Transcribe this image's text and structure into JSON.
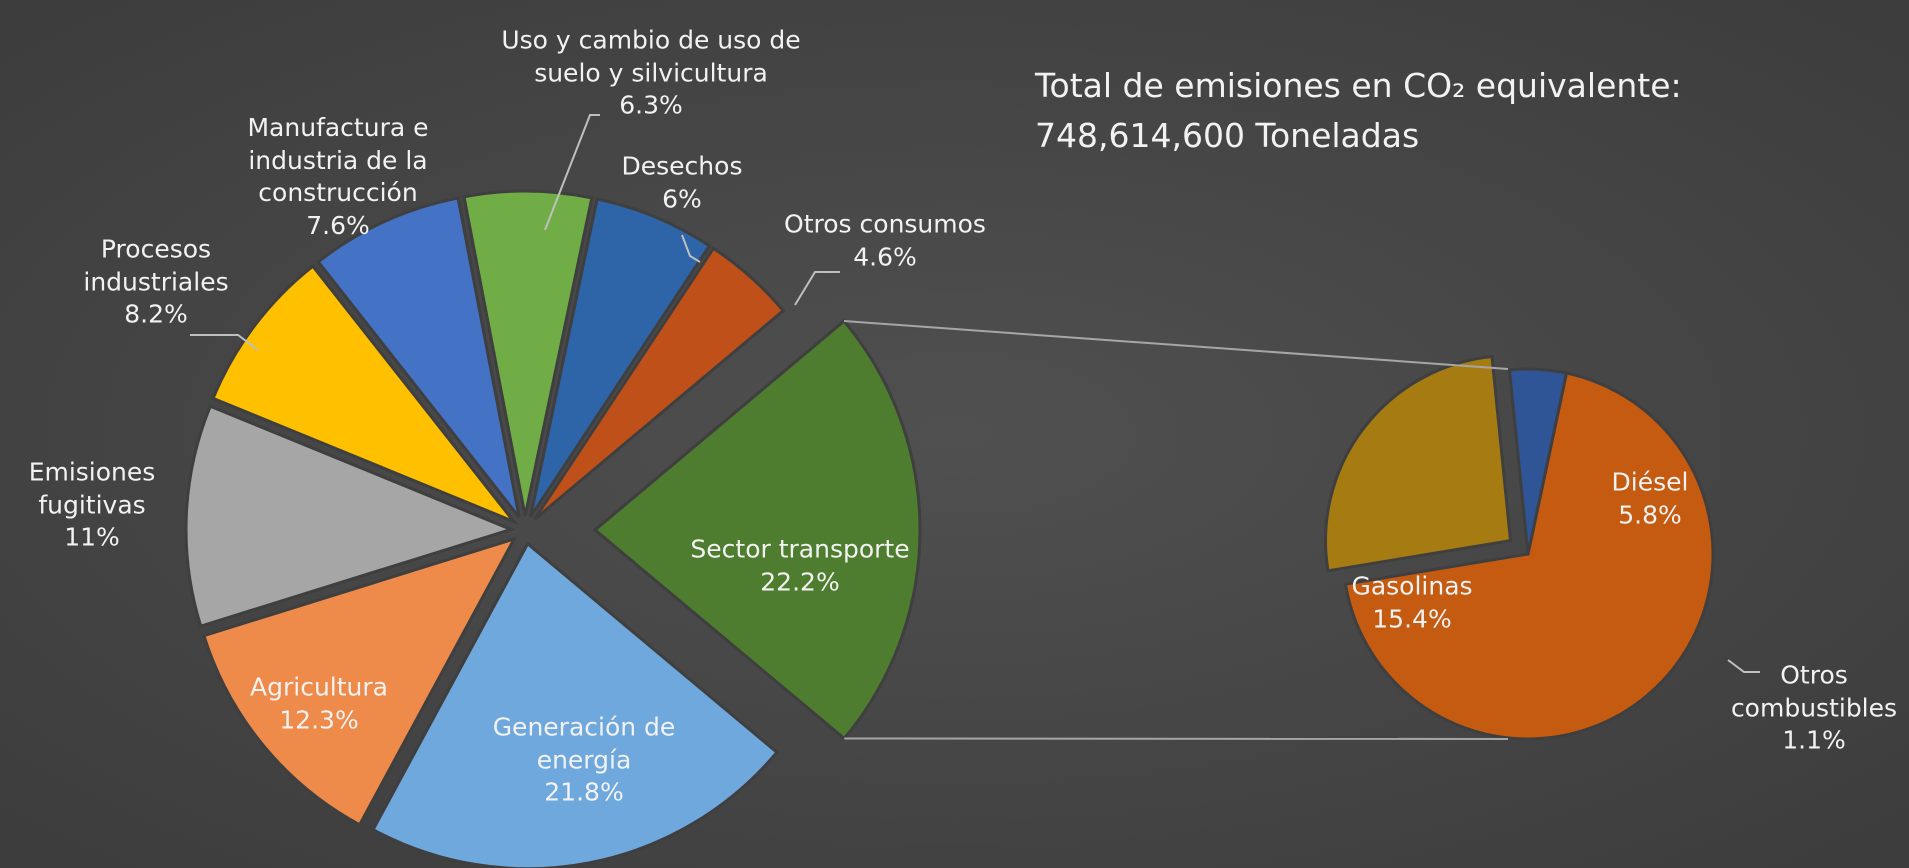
{
  "chart_data": [
    {
      "type": "pie",
      "title": "Total de emisiones en CO₂ equivalente:",
      "subtitle": "748,614,600 Toneladas",
      "categories": [
        "Sector transporte",
        "Generación de energía",
        "Agricultura",
        "Emisiones fugitivas",
        "Procesos industriales",
        "Manufactura e industria de la construcción",
        "Uso y cambio de uso de suelo y silvicultura",
        "Desechos",
        "Otros consumos"
      ],
      "values": [
        22.2,
        21.8,
        12.3,
        11,
        8.2,
        7.6,
        6.3,
        6,
        4.6
      ],
      "value_labels": [
        "22.2%",
        "21.8%",
        "12.3%",
        "11%",
        "8.2%",
        "7.6%",
        "6.3%",
        "6%",
        "4.6%"
      ],
      "colors": [
        "#4e7d2f",
        "#6fa8dc",
        "#ee8a4a",
        "#a6a6a6",
        "#ffc000",
        "#4472c4",
        "#70ad47",
        "#2e64a8",
        "#c0501a"
      ]
    },
    {
      "type": "pie",
      "categories": [
        "Gasolinas",
        "Diésel",
        "Otros combustibles"
      ],
      "values": [
        15.4,
        5.8,
        1.1
      ],
      "value_labels": [
        "15.4%",
        "5.8%",
        "1.1%"
      ],
      "colors": [
        "#c55a11",
        "#a67c12",
        "#2f5597"
      ]
    }
  ]
}
